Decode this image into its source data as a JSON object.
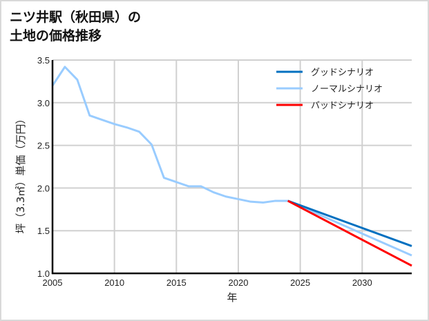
{
  "title_lines": [
    "ニツ井駅（秋田県）の",
    "土地の価格推移"
  ],
  "chart_data": {
    "type": "line",
    "title": "ニツ井駅（秋田県）の土地の価格推移",
    "xlabel": "年",
    "ylabel": "坪（3.3㎡）単価（万円）",
    "xlim": [
      2005,
      2034
    ],
    "ylim": [
      1.0,
      3.5
    ],
    "xticks": [
      2005,
      2010,
      2015,
      2020,
      2025,
      2030
    ],
    "yticks": [
      1.0,
      1.5,
      2.0,
      2.5,
      3.0,
      3.5
    ],
    "grid": true,
    "legend_position": "upper right",
    "series": [
      {
        "name": "グッドシナリオ",
        "color": "#0070c0",
        "x": [
          2024,
          2034
        ],
        "values": [
          1.85,
          1.32
        ]
      },
      {
        "name": "ノーマルシナリオ",
        "color": "#99ccff",
        "x": [
          2005,
          2006,
          2007,
          2008,
          2009,
          2010,
          2011,
          2012,
          2013,
          2014,
          2015,
          2016,
          2017,
          2018,
          2019,
          2020,
          2021,
          2022,
          2023,
          2024,
          2034
        ],
        "values": [
          3.2,
          3.42,
          3.27,
          2.85,
          2.8,
          2.75,
          2.71,
          2.66,
          2.51,
          2.12,
          2.07,
          2.02,
          2.02,
          1.95,
          1.9,
          1.87,
          1.84,
          1.83,
          1.85,
          1.85,
          1.21
        ]
      },
      {
        "name": "バッドシナリオ",
        "color": "#ff0000",
        "x": [
          2024,
          2034
        ],
        "values": [
          1.85,
          1.09
        ]
      }
    ]
  }
}
